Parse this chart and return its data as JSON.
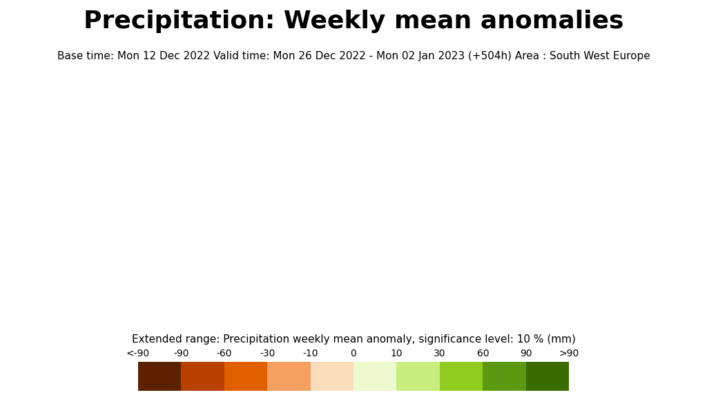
{
  "title": "Precipitation: Weekly mean anomalies",
  "subtitle": "Base time: Mon 12 Dec 2022 Valid time: Mon 26 Dec 2022 - Mon 02 Jan 2023 (+504h) Area : South West Europe",
  "colorbar_label": "Extended range: Precipitation weekly mean anomaly, significance level: 10 % (mm)",
  "colorbar_ticks": [
    "<-90",
    "-90",
    "-60",
    "-30",
    "-10",
    "0",
    "10",
    "30",
    "60",
    "90",
    ">90"
  ],
  "colorbar_colors": [
    "#5C2200",
    "#B84000",
    "#E06000",
    "#F5A060",
    "#FADDBB",
    "#EDFAD0",
    "#C8EE80",
    "#90CC20",
    "#5C9910",
    "#3A6B00"
  ],
  "background_color": "#FFFFFF",
  "title_fontsize": 26,
  "subtitle_fontsize": 11,
  "colorbar_label_fontsize": 11,
  "colorbar_tick_fontsize": 10,
  "figure_width": 10.24,
  "figure_height": 5.76,
  "dpi": 100
}
